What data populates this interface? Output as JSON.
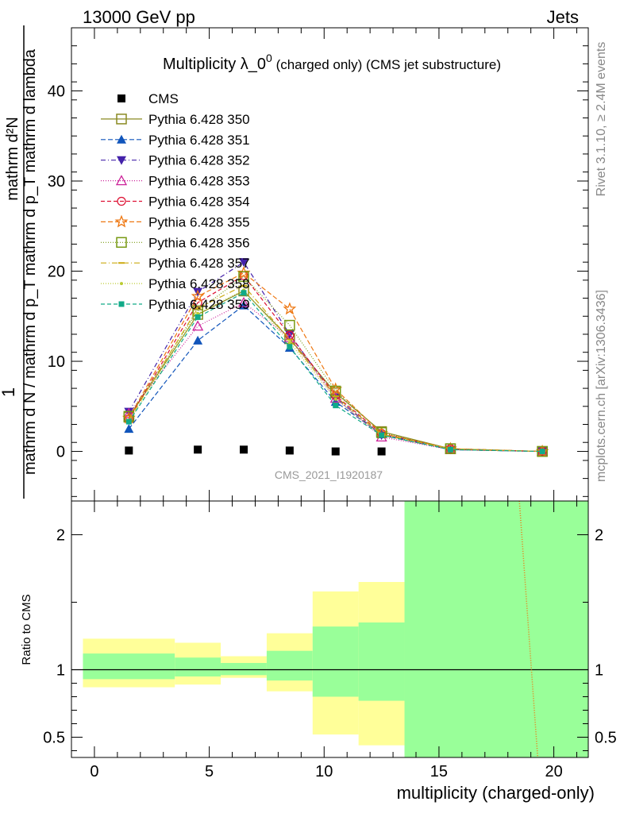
{
  "header": {
    "left": "13000 GeV pp",
    "right": "Jets"
  },
  "side_labels": {
    "rivet": "Rivet 3.1.10, ≥ 2.4M events",
    "mcplots": "mcplots.cern.ch [arXiv:1306.3436]"
  },
  "watermark": "CMS_2021_I1920187",
  "chart_data": [
    {
      "type": "line",
      "title_main": "Multiplicity λ_0",
      "title_sup": "0",
      "title_rest": " (charged only) (CMS jet substructure)",
      "ylabel_numerator": "mathrm d²N",
      "ylabel_denominator": "mathrm d N / mathrm d p_T mathrm d p_T mathrm d lambda",
      "ylabel_prefix": "1",
      "xlim": [
        -1,
        21.5
      ],
      "ylim": [
        -5.5,
        47
      ],
      "yticks": [
        0,
        10,
        20,
        30,
        40
      ],
      "grid": false,
      "legend_placement": "top-left",
      "series": [
        {
          "name": "CMS",
          "color": "#000000",
          "marker": "square-filled",
          "dash": "none",
          "x": [
            1.5,
            4.5,
            6.5,
            8.5,
            10.5,
            12.5
          ],
          "y": [
            0.1,
            0.2,
            0.2,
            0.1,
            0.0,
            0.0
          ]
        },
        {
          "name": "Pythia 6.428 350",
          "color": "#8a8a22",
          "marker": "square-open",
          "dash": "solid",
          "x": [
            1.5,
            4.5,
            6.5,
            8.5,
            10.5,
            12.5,
            15.5,
            19.5
          ],
          "y": [
            3.8,
            15.2,
            17.8,
            12.5,
            6.5,
            2.2,
            0.3,
            0.0
          ]
        },
        {
          "name": "Pythia 6.428 351",
          "color": "#1155bb",
          "marker": "triangle-up-filled",
          "dash": "6,3",
          "x": [
            1.5,
            4.5,
            6.5,
            8.5,
            10.5,
            12.5,
            15.5,
            19.5
          ],
          "y": [
            2.5,
            12.3,
            16.2,
            11.5,
            5.5,
            1.9,
            0.2,
            0.0
          ]
        },
        {
          "name": "Pythia 6.428 352",
          "color": "#4422aa",
          "marker": "triangle-down-filled",
          "dash": "6,3,1,3",
          "x": [
            1.5,
            4.5,
            6.5,
            8.5,
            10.5,
            12.5,
            15.5,
            19.5
          ],
          "y": [
            4.4,
            17.7,
            21.0,
            13.0,
            6.0,
            1.8,
            0.2,
            0.0
          ]
        },
        {
          "name": "Pythia 6.428 353",
          "color": "#cc2299",
          "marker": "triangle-up-open",
          "dash": "1,2",
          "x": [
            1.5,
            4.5,
            6.5,
            8.5,
            10.5,
            12.5,
            15.5,
            19.5
          ],
          "y": [
            4.2,
            13.9,
            16.5,
            12.6,
            5.9,
            1.6,
            0.2,
            0.0
          ]
        },
        {
          "name": "Pythia 6.428 354",
          "color": "#dd1133",
          "marker": "circle-open",
          "dash": "5,3",
          "x": [
            1.5,
            4.5,
            6.5,
            8.5,
            10.5,
            12.5,
            15.5,
            19.5
          ],
          "y": [
            3.6,
            16.5,
            19.5,
            12.9,
            6.2,
            2.0,
            0.3,
            0.0
          ]
        },
        {
          "name": "Pythia 6.428 355",
          "color": "#ee7711",
          "marker": "star-open",
          "dash": "6,3",
          "x": [
            1.5,
            4.5,
            6.5,
            8.5,
            10.5,
            12.5,
            15.5,
            19.5
          ],
          "y": [
            3.7,
            17.2,
            19.8,
            15.8,
            6.9,
            2.0,
            0.3,
            0.0
          ]
        },
        {
          "name": "Pythia 6.428 356",
          "color": "#779911",
          "marker": "square-open",
          "dash": "1,2",
          "x": [
            1.5,
            4.5,
            6.5,
            8.5,
            10.5,
            12.5,
            15.5,
            19.5
          ],
          "y": [
            3.9,
            15.6,
            19.4,
            14.0,
            6.7,
            2.1,
            0.3,
            0.0
          ]
        },
        {
          "name": "Pythia 6.428 357",
          "color": "#ccaa11",
          "marker": "dash",
          "dash": "7,3,1,3",
          "x": [
            1.5,
            4.5,
            6.5,
            8.5,
            10.5,
            12.5,
            15.5,
            19.5
          ],
          "y": [
            3.5,
            15.9,
            18.4,
            12.4,
            6.1,
            1.9,
            0.3,
            0.0
          ]
        },
        {
          "name": "Pythia 6.428 358",
          "color": "#bbcc33",
          "marker": "dot",
          "dash": "1,2",
          "x": [
            1.5,
            4.5,
            6.5,
            8.5,
            10.5,
            12.5,
            15.5,
            19.5
          ],
          "y": [
            3.3,
            15.3,
            17.9,
            12.1,
            5.8,
            1.8,
            0.2,
            0.0
          ]
        },
        {
          "name": "Pythia 6.428 359",
          "color": "#11aa88",
          "marker": "square-filled-small",
          "dash": "5,3",
          "x": [
            1.5,
            4.5,
            6.5,
            8.5,
            10.5,
            12.5,
            15.5,
            19.5
          ],
          "y": [
            3.3,
            14.9,
            17.6,
            11.6,
            5.1,
            1.8,
            0.2,
            0.0
          ]
        }
      ]
    },
    {
      "type": "area",
      "ylabel": "Ratio to CMS",
      "xlabel": "multiplicity (charged-only)",
      "xlim": [
        -1,
        21.5
      ],
      "ylim": [
        0.35,
        2.25
      ],
      "xticks": [
        0,
        5,
        10,
        15,
        20
      ],
      "yticks": [
        0.5,
        1,
        2
      ],
      "reference_line": 1,
      "band_colors": {
        "outer": "#ffff99",
        "inner": "#99ff99"
      },
      "bins": [
        {
          "x0": -0.5,
          "x1": 3.5,
          "outer": [
            0.87,
            1.23
          ],
          "inner": [
            0.93,
            1.12
          ]
        },
        {
          "x0": 3.5,
          "x1": 5.5,
          "outer": [
            0.89,
            1.2
          ],
          "inner": [
            0.95,
            1.09
          ]
        },
        {
          "x0": 5.5,
          "x1": 7.5,
          "outer": [
            0.94,
            1.1
          ],
          "inner": [
            0.96,
            1.05
          ]
        },
        {
          "x0": 7.5,
          "x1": 9.5,
          "outer": [
            0.84,
            1.27
          ],
          "inner": [
            0.92,
            1.14
          ]
        },
        {
          "x0": 9.5,
          "x1": 11.5,
          "outer": [
            0.52,
            1.58
          ],
          "inner": [
            0.8,
            1.32
          ]
        },
        {
          "x0": 11.5,
          "x1": 13.5,
          "outer": [
            0.44,
            1.65
          ],
          "inner": [
            0.77,
            1.35
          ]
        },
        {
          "x0": 13.5,
          "x1": 21.5,
          "outer": [
            0.35,
            2.25
          ],
          "inner": [
            0.35,
            2.25
          ]
        }
      ],
      "series": [
        {
          "color": "#ee7711",
          "dash": "1,2",
          "x": [
            18.5,
            19.3
          ],
          "y": [
            2.25,
            0.35
          ]
        }
      ]
    }
  ]
}
